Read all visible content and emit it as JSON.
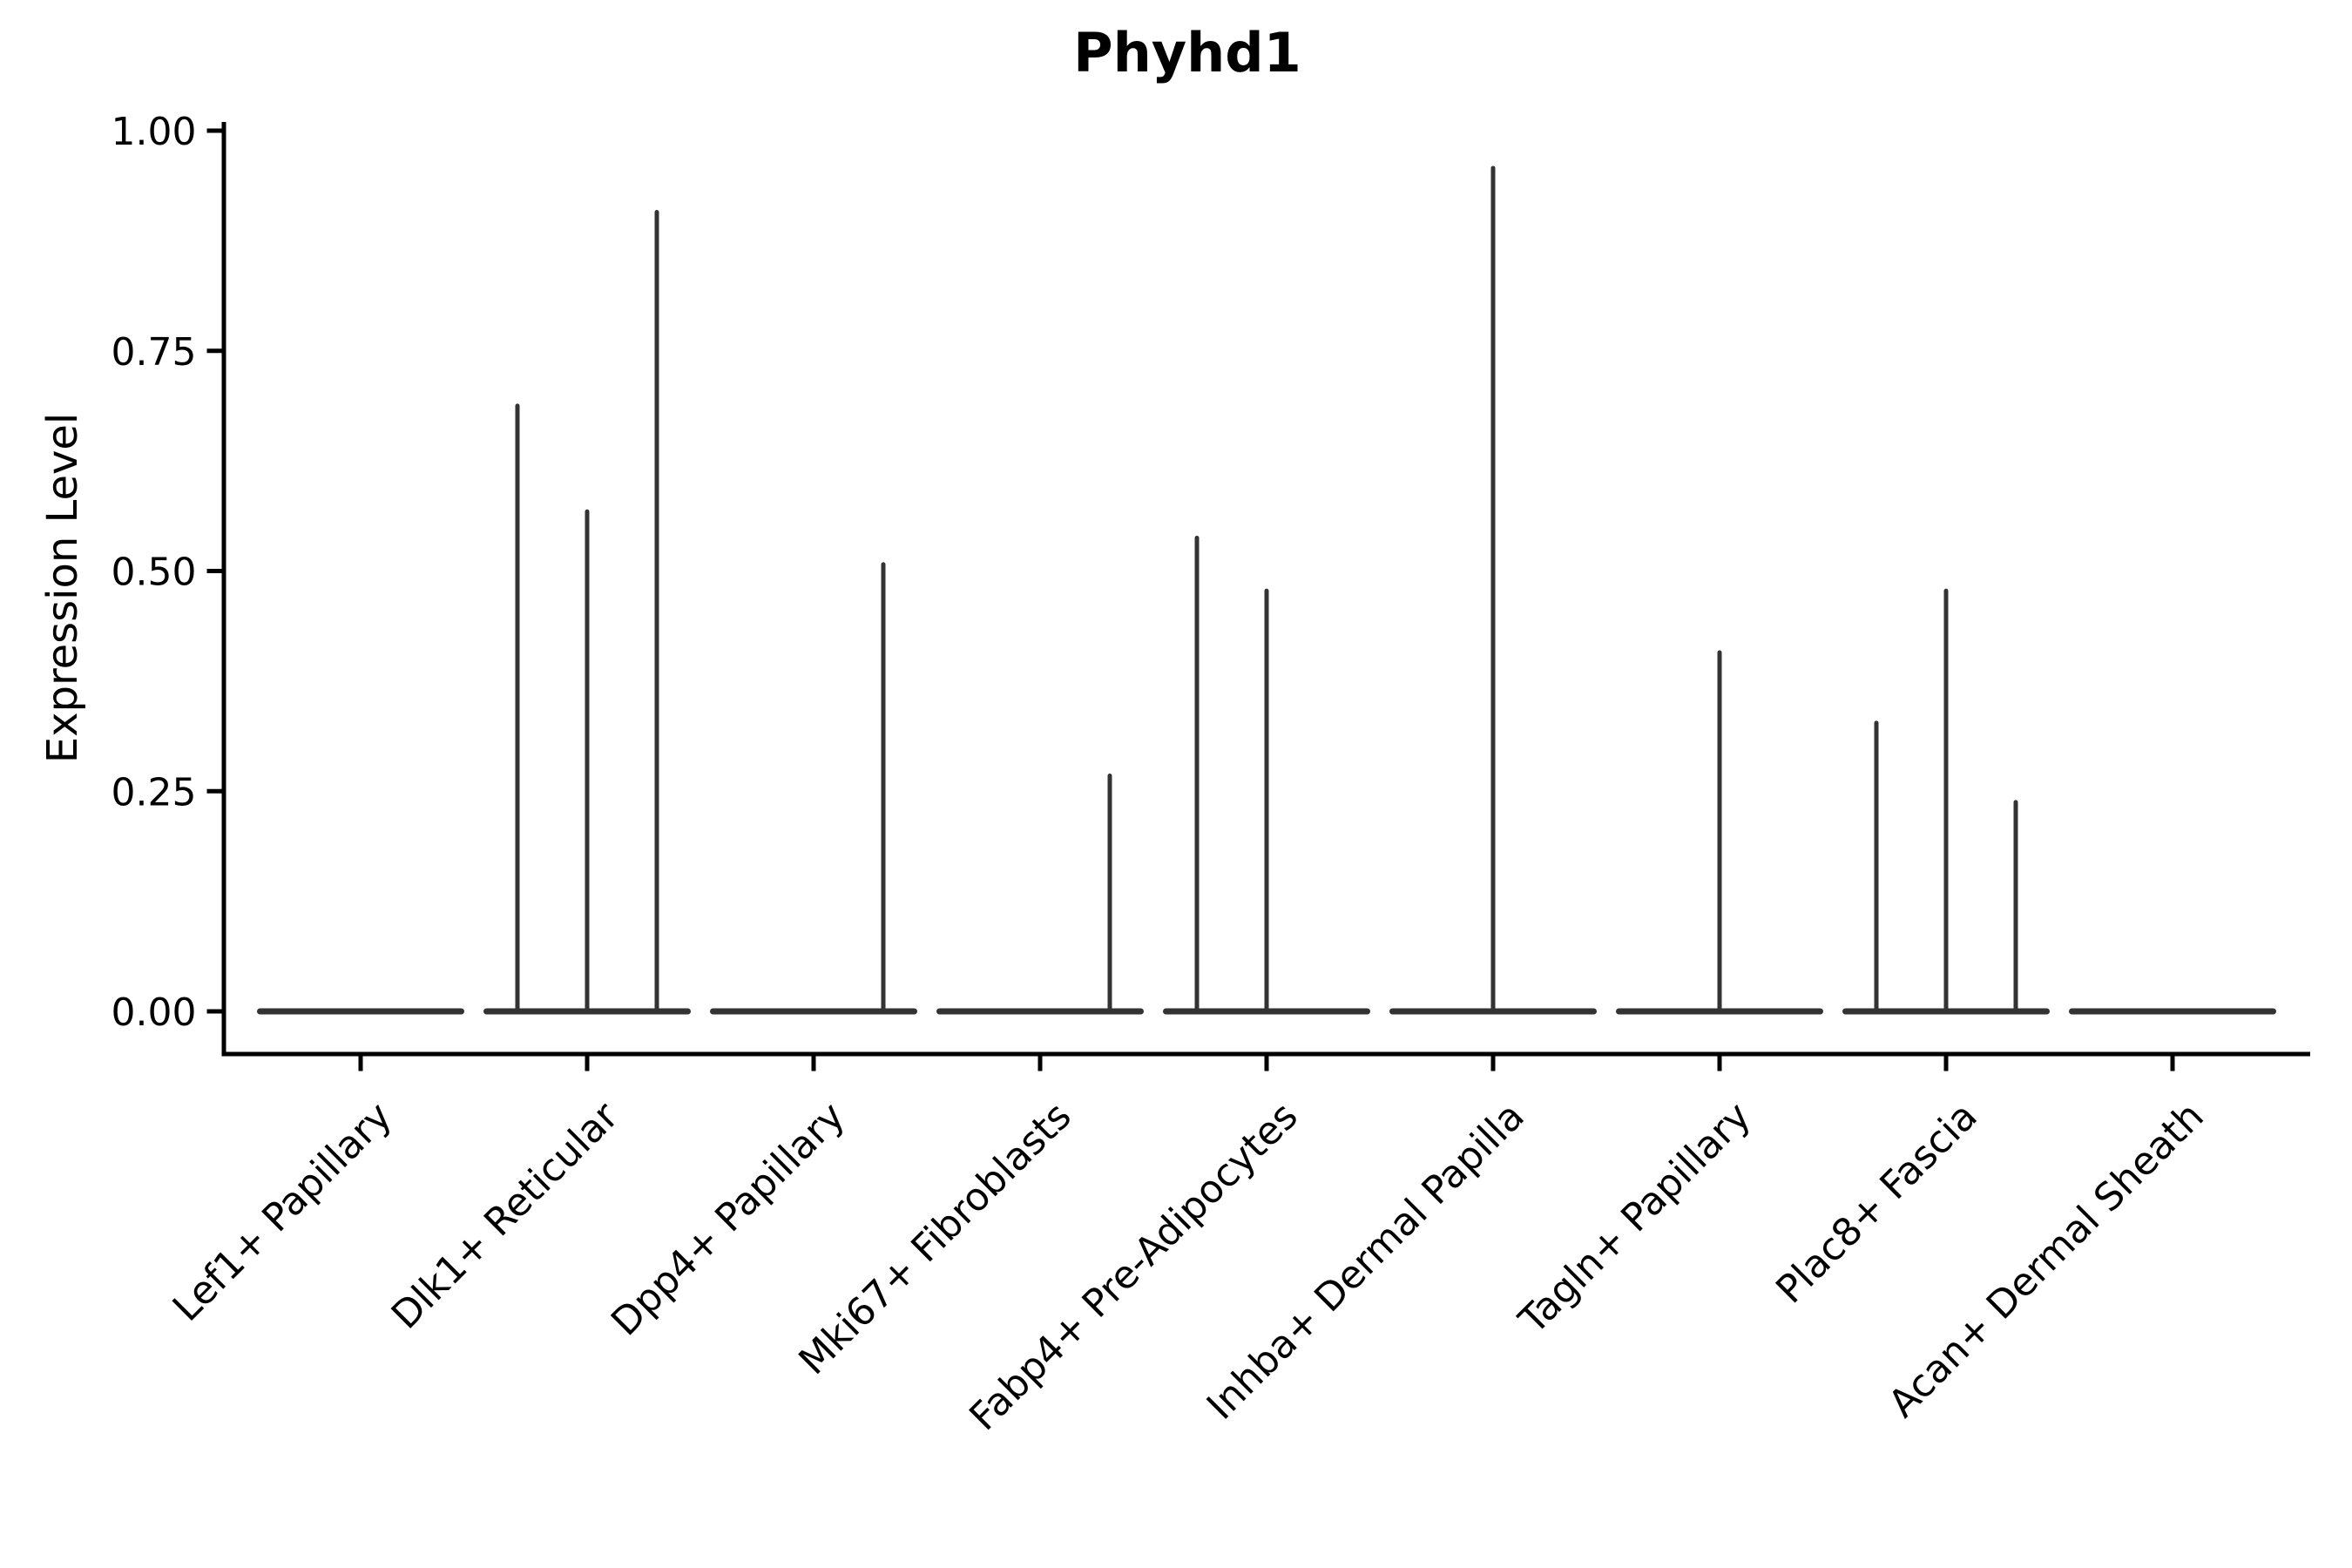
{
  "chart_data": {
    "type": "violin",
    "title": "Phyhd1",
    "ylabel": "Expression Level",
    "xlabel": "",
    "ylim": [
      0,
      1
    ],
    "grid": false,
    "legend": false,
    "yticks": [
      {
        "label": "1.00",
        "value": 1.0
      },
      {
        "label": "0.75",
        "value": 0.75
      },
      {
        "label": "0.50",
        "value": 0.5
      },
      {
        "label": "0.25",
        "value": 0.25
      },
      {
        "label": "0.00",
        "value": 0.0
      }
    ],
    "violins_per_category": 3,
    "violin_positions": [
      "left",
      "middle",
      "right"
    ],
    "groups": [
      {
        "category": "Lef1+ Papillary",
        "max_expression": [
          0,
          0,
          0
        ]
      },
      {
        "category": "Dlk1+ Reticular",
        "max_expression": [
          0.69,
          0.57,
          0.91
        ]
      },
      {
        "category": "Dpp4+ Papillary",
        "max_expression": [
          0,
          0,
          0.51
        ]
      },
      {
        "category": "Mki67+ Fibroblasts",
        "max_expression": [
          0,
          0,
          0.27
        ]
      },
      {
        "category": "Fabp4+ Pre-Adipocytes",
        "max_expression": [
          0.54,
          0.48,
          0
        ]
      },
      {
        "category": "Inhba+ Dermal Papilla",
        "max_expression": [
          0,
          0.96,
          0
        ]
      },
      {
        "category": "Tagln+ Papillary",
        "max_expression": [
          0,
          0.41,
          0
        ]
      },
      {
        "category": "Plac8+ Fascia",
        "max_expression": [
          0.33,
          0.48,
          0.24
        ]
      },
      {
        "category": "Acan+ Dermal Sheath",
        "max_expression": [
          0,
          0,
          0
        ]
      }
    ],
    "colors": {
      "violin": "#333333",
      "axis": "#000000",
      "text": "#000000",
      "background": "#ffffff"
    }
  }
}
